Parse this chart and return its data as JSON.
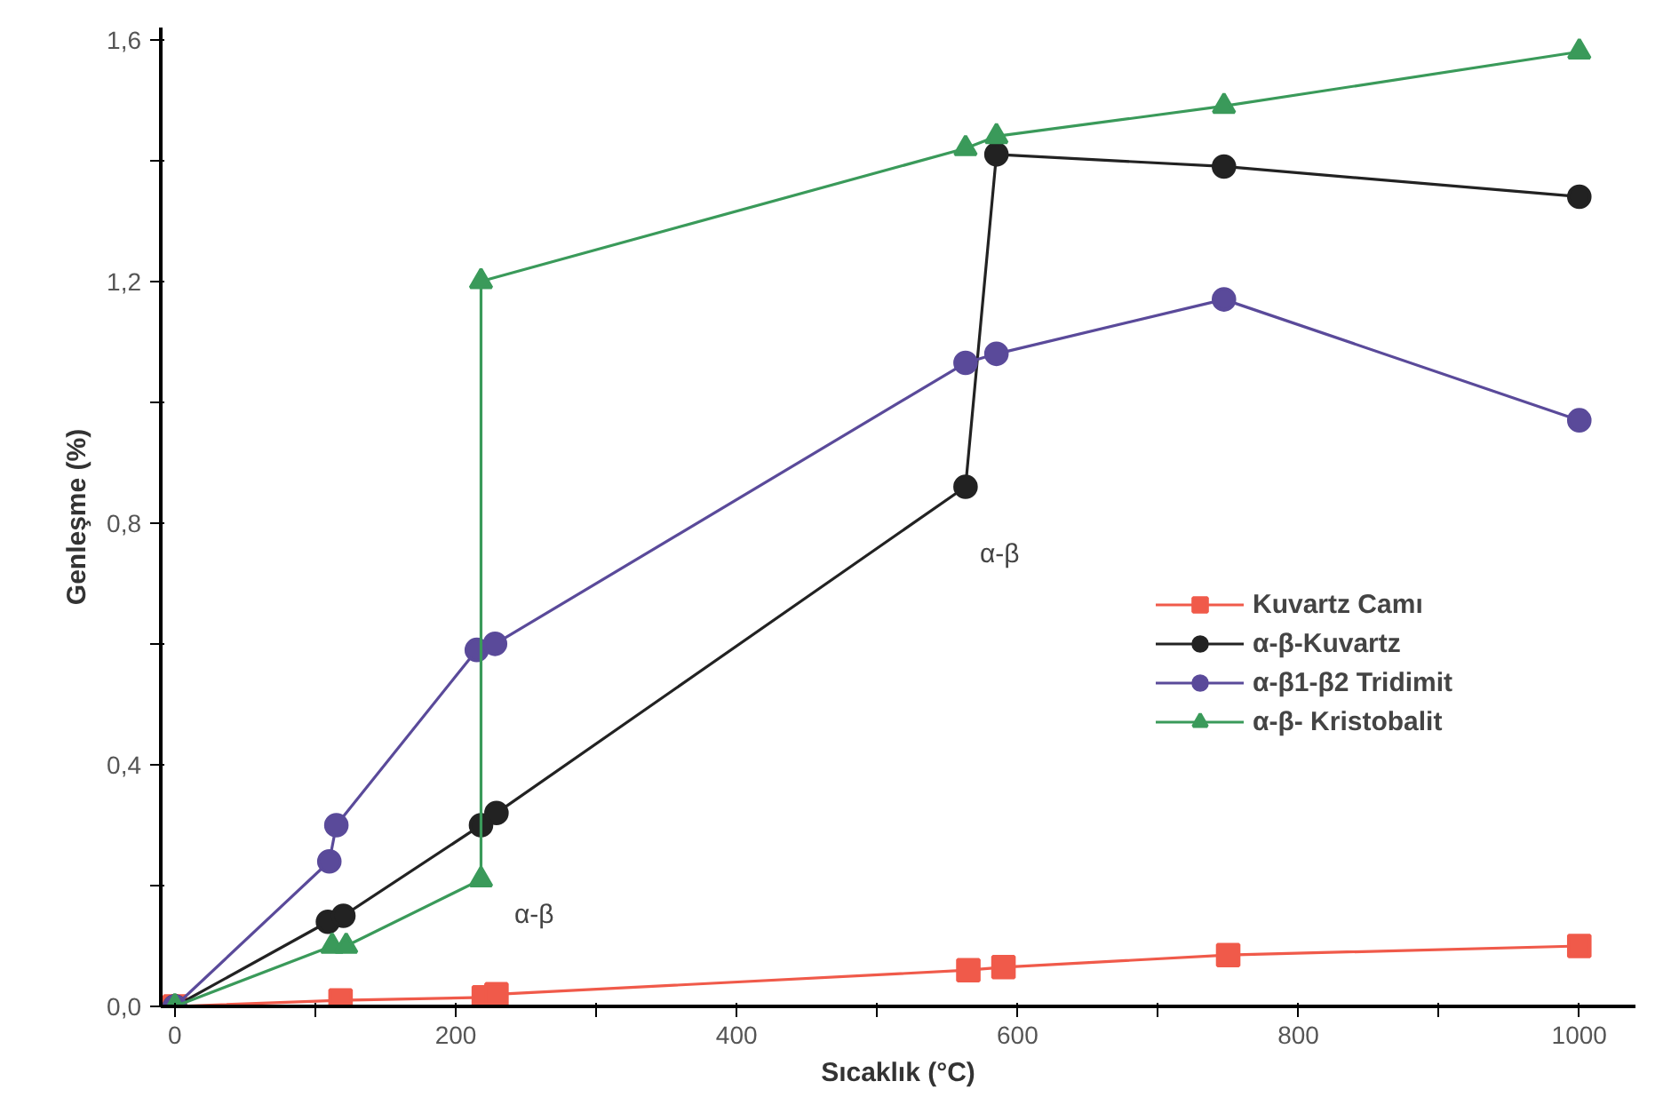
{
  "chart_data": {
    "type": "line",
    "xlabel": "Sıcaklık (°C)",
    "ylabel": "Genleşme (%)",
    "xlim": [
      -10,
      1040
    ],
    "ylim": [
      0,
      1.62
    ],
    "xticks": [
      0,
      {
        "value": 100,
        "label": null
      },
      200,
      {
        "value": 300,
        "label": null
      },
      400,
      {
        "value": 500,
        "label": null
      },
      600,
      {
        "value": 700,
        "label": null
      },
      800,
      {
        "value": 900,
        "label": null
      },
      1000
    ],
    "yticks": [
      {
        "value": 0,
        "label": "0,0"
      },
      {
        "value": 0.2,
        "label": null
      },
      {
        "value": 0.4,
        "label": "0,4"
      },
      {
        "value": 0.6,
        "label": null
      },
      {
        "value": 0.8,
        "label": "0,8"
      },
      {
        "value": 1.0,
        "label": null
      },
      {
        "value": 1.2,
        "label": "1,2"
      },
      {
        "value": 1.4,
        "label": null
      },
      {
        "value": 1.6,
        "label": "1,6"
      }
    ],
    "grid": false,
    "legend": "right",
    "line_style": "solid",
    "series": [
      {
        "name": "Kuvartz Camı",
        "color": "#f05a4a",
        "marker": "square",
        "x": [
          0,
          118,
          220,
          229,
          565,
          590,
          750,
          1000
        ],
        "values": [
          0,
          0.01,
          0.015,
          0.02,
          0.06,
          0.065,
          0.085,
          0.1
        ]
      },
      {
        "name": "α-β-Kuvartz",
        "color": "#222222",
        "marker": "circle",
        "x": [
          0,
          109,
          120,
          218,
          229,
          563,
          585,
          747,
          1000
        ],
        "values": [
          0,
          0.14,
          0.15,
          0.3,
          0.32,
          0.86,
          1.41,
          1.39,
          1.34
        ]
      },
      {
        "name": "α-β1-β2 Tridimit",
        "color": "#5a4a9a",
        "marker": "circle",
        "x": [
          0,
          110,
          115,
          215,
          228,
          563,
          585,
          747,
          1000
        ],
        "values": [
          0,
          0.24,
          0.3,
          0.59,
          0.6,
          1.065,
          1.08,
          1.17,
          0.97
        ]
      },
      {
        "name": "α-β- Kristobalit",
        "color": "#3a9a5a",
        "marker": "triangle",
        "x": [
          0,
          112,
          122,
          218,
          218,
          563,
          585,
          747,
          1000
        ],
        "values": [
          0,
          0.1,
          0.1,
          0.21,
          1.2,
          1.42,
          1.44,
          1.49,
          1.58
        ]
      }
    ],
    "annotations": [
      "α-β",
      "α-β"
    ]
  }
}
